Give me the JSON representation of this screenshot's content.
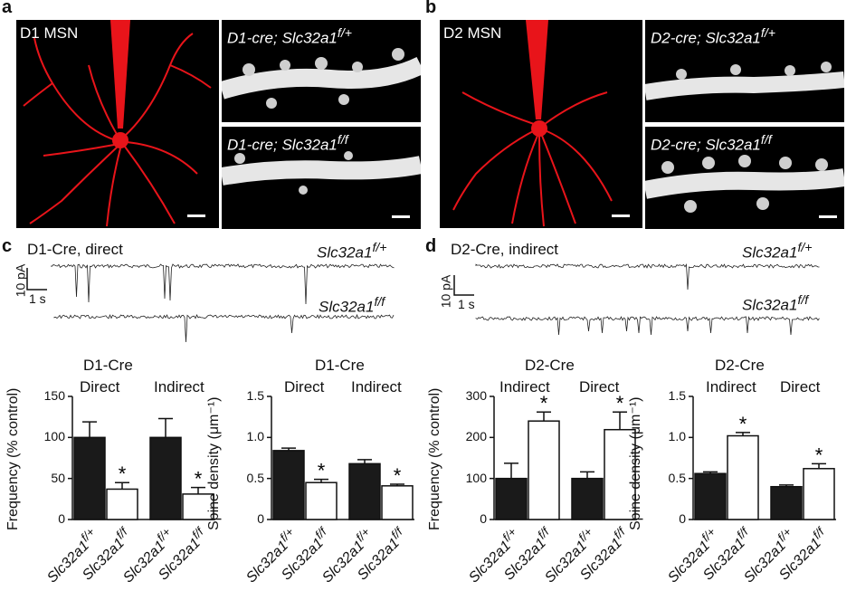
{
  "panels": {
    "a": {
      "label": "a",
      "left_image_label": "D1 MSN",
      "top_right_label": {
        "main": "D1-cre; Slc32a1",
        "sup": "f/+"
      },
      "bottom_right_label": {
        "main": "D1-cre; Slc32a1",
        "sup": "f/f"
      }
    },
    "b": {
      "label": "b",
      "left_image_label": "D2 MSN",
      "top_right_label": {
        "main": "D2-cre; Slc32a1",
        "sup": "f/+"
      },
      "bottom_right_label": {
        "main": "D2-cre; Slc32a1",
        "sup": "f/f"
      }
    },
    "c": {
      "label": "c",
      "condition": "D1-Cre, direct",
      "trace1_label": {
        "main": "Slc32a1",
        "sup": "f/+"
      },
      "trace2_label": {
        "main": "Slc32a1",
        "sup": "f/f"
      },
      "scale_y": "10 pA",
      "scale_x": "1 s"
    },
    "d": {
      "label": "d",
      "condition": "D2-Cre, indirect",
      "trace1_label": {
        "main": "Slc32a1",
        "sup": "f/+"
      },
      "trace2_label": {
        "main": "Slc32a1",
        "sup": "f/f"
      },
      "scale_y": "10 pA",
      "scale_x": "1 s"
    }
  },
  "colors": {
    "neuron": "#e8141a",
    "filled_bar": "#1a1a1a",
    "open_bar": "#ffffff"
  },
  "chart_data": [
    {
      "type": "bar",
      "panel": "c",
      "title": "D1-Cre",
      "ylabel": "Frequency (% control)",
      "groups": [
        "Direct",
        "Indirect"
      ],
      "categories": [
        "Slc32a1f/+",
        "Slc32a1f/f",
        "Slc32a1f/+",
        "Slc32a1f/f"
      ],
      "values": [
        100,
        37,
        100,
        31
      ],
      "errors": [
        19,
        8,
        23,
        8
      ],
      "significant": [
        false,
        true,
        false,
        true
      ],
      "ylim": [
        0,
        150
      ],
      "yticks": [
        "0",
        "50",
        "100",
        "150"
      ]
    },
    {
      "type": "bar",
      "panel": "c",
      "title": "D1-Cre",
      "ylabel": "Spine density (μm⁻¹)",
      "groups": [
        "Direct",
        "Indirect"
      ],
      "categories": [
        "Slc32a1f/+",
        "Slc32a1f/f",
        "Slc32a1f/+",
        "Slc32a1f/f"
      ],
      "values": [
        0.84,
        0.45,
        0.68,
        0.41
      ],
      "errors": [
        0.03,
        0.04,
        0.05,
        0.02
      ],
      "significant": [
        false,
        true,
        false,
        true
      ],
      "ylim": [
        0,
        1.5
      ],
      "yticks": [
        "0",
        "0.5",
        "1.0",
        "1.5"
      ]
    },
    {
      "type": "bar",
      "panel": "d",
      "title": "D2-Cre",
      "ylabel": "Frequency (% control)",
      "groups": [
        "Indirect",
        "Direct"
      ],
      "categories": [
        "Slc32a1f/+",
        "Slc32a1f/f",
        "Slc32a1f/+",
        "Slc32a1f/f"
      ],
      "values": [
        100,
        240,
        100,
        219
      ],
      "errors": [
        37,
        22,
        16,
        43
      ],
      "significant": [
        false,
        true,
        false,
        true
      ],
      "ylim": [
        0,
        300
      ],
      "yticks": [
        "0",
        "100",
        "200",
        "300"
      ]
    },
    {
      "type": "bar",
      "panel": "d",
      "title": "D2-Cre",
      "ylabel": "Spine density (μm⁻¹)",
      "groups": [
        "Indirect",
        "Direct"
      ],
      "categories": [
        "Slc32a1f/+",
        "Slc32a1f/f",
        "Slc32a1f/+",
        "Slc32a1f/f"
      ],
      "values": [
        0.56,
        1.02,
        0.4,
        0.62
      ],
      "errors": [
        0.02,
        0.04,
        0.02,
        0.06
      ],
      "significant": [
        false,
        true,
        false,
        true
      ],
      "ylim": [
        0,
        1.5
      ],
      "yticks": [
        "0",
        "0.5",
        "1.0",
        "1.5"
      ]
    }
  ],
  "xtick_label": {
    "main": "Slc32a1",
    "sup_wt": "f/+",
    "sup_ko": "f/f"
  },
  "significance_marker": "*"
}
